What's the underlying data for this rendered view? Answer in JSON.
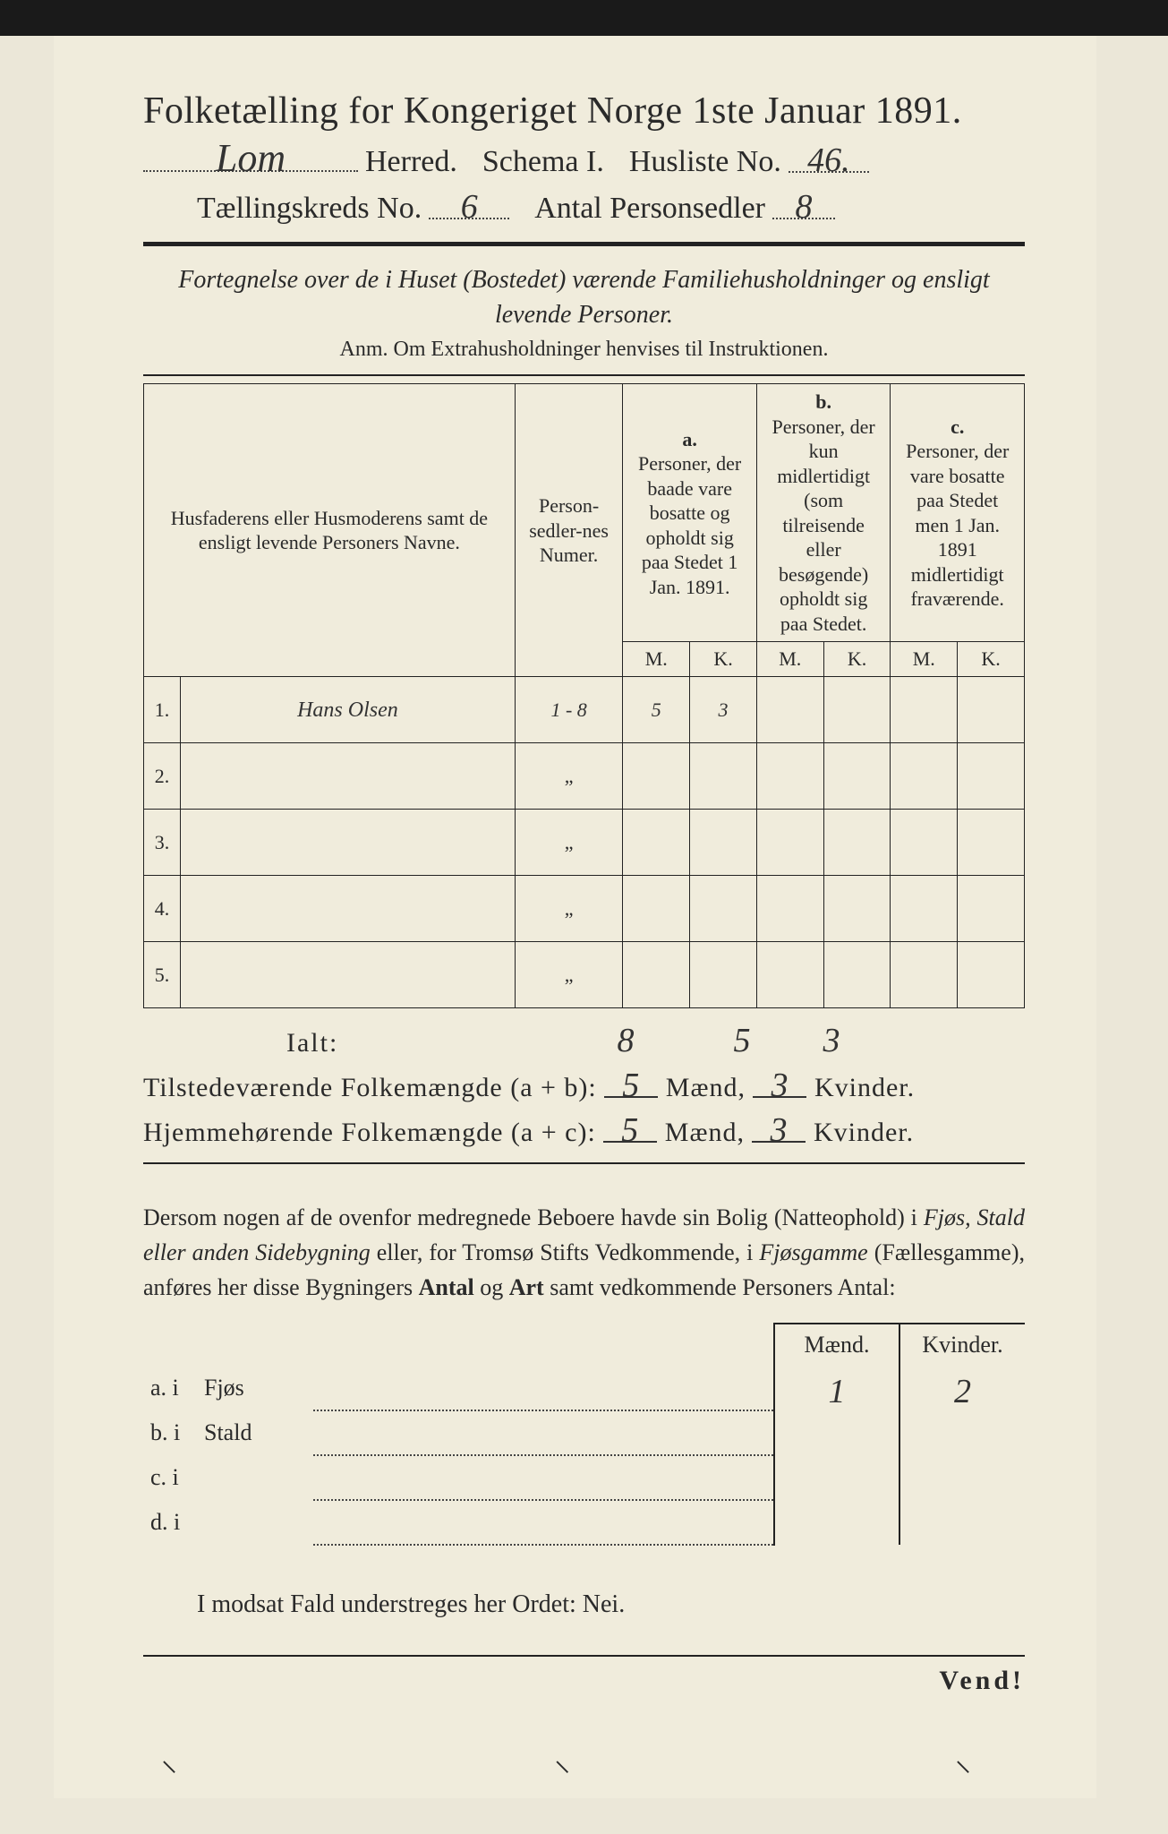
{
  "title": "Folketælling for Kongeriget Norge 1ste Januar 1891.",
  "header": {
    "herred_value": "Lom",
    "herred_label": "Herred.",
    "schema_label": "Schema I.",
    "husliste_label": "Husliste No.",
    "husliste_no": "46.",
    "kreds_label": "Tællingskreds No.",
    "kreds_no": "6",
    "antal_label": "Antal Personsedler",
    "antal_no": "8"
  },
  "instruction": "Fortegnelse over de i Huset (Bostedet) værende Familiehusholdninger og ensligt levende Personer.",
  "anm": "Anm. Om Extrahusholdninger henvises til Instruktionen.",
  "columns": {
    "name": "Husfaderens eller Husmoderens samt de ensligt levende Personers Navne.",
    "numer": "Person-sedler-nes Numer.",
    "a_label": "a.",
    "a_text": "Personer, der baade vare bosatte og opholdt sig paa Stedet 1 Jan. 1891.",
    "b_label": "b.",
    "b_text": "Personer, der kun midlertidigt (som tilreisende eller besøgende) opholdt sig paa Stedet.",
    "c_label": "c.",
    "c_text": "Personer, der vare bosatte paa Stedet men 1 Jan. 1891 midlertidigt fraværende.",
    "m": "M.",
    "k": "K."
  },
  "rows": [
    {
      "n": "1.",
      "name": "Hans Olsen",
      "numer": "1 - 8",
      "am": "5",
      "ak": "3",
      "bm": "",
      "bk": "",
      "cm": "",
      "ck": ""
    },
    {
      "n": "2.",
      "name": "",
      "numer": "„",
      "am": "",
      "ak": "",
      "bm": "",
      "bk": "",
      "cm": "",
      "ck": ""
    },
    {
      "n": "3.",
      "name": "",
      "numer": "„",
      "am": "",
      "ak": "",
      "bm": "",
      "bk": "",
      "cm": "",
      "ck": ""
    },
    {
      "n": "4.",
      "name": "",
      "numer": "„",
      "am": "",
      "ak": "",
      "bm": "",
      "bk": "",
      "cm": "",
      "ck": ""
    },
    {
      "n": "5.",
      "name": "",
      "numer": "„",
      "am": "",
      "ak": "",
      "bm": "",
      "bk": "",
      "cm": "",
      "ck": ""
    }
  ],
  "totals": {
    "label": "Ialt:",
    "numer": "8",
    "am": "5",
    "ak": "3"
  },
  "summary": {
    "line1_label": "Tilstedeværende Folkemængde (a + b):",
    "line1_m": "5",
    "line1_k": "3",
    "line2_label": "Hjemmehørende Folkemængde (a + c):",
    "line2_m": "5",
    "line2_k": "3",
    "maend": "Mænd,",
    "kvinder": "Kvinder."
  },
  "para": {
    "t1": "Dersom nogen af de ovenfor medregnede Beboere havde sin Bolig (Natteophold) i ",
    "it1": "Fjøs, Stald eller anden Sidebygning",
    "t2": " eller, for Tromsø Stifts Vedkommende, i ",
    "it2": "Fjøsgamme",
    "t3": " (Fællesgamme), anføres her disse Bygningers ",
    "b1": "Antal",
    "t4": " og ",
    "b2": "Art",
    "t5": " samt vedkommende Personers Antal:"
  },
  "bldg": {
    "maend": "Mænd.",
    "kvinder": "Kvinder.",
    "rows": [
      {
        "lab": "a. i",
        "typ": "Fjøs",
        "m": "1",
        "k": "2"
      },
      {
        "lab": "b. i",
        "typ": "Stald",
        "m": "",
        "k": ""
      },
      {
        "lab": "c. i",
        "typ": "",
        "m": "",
        "k": ""
      },
      {
        "lab": "d. i",
        "typ": "",
        "m": "",
        "k": ""
      }
    ]
  },
  "nei": "I modsat Fald understreges her Ordet: Nei.",
  "vend": "Vend!",
  "colors": {
    "paper": "#f0ecdc",
    "ink": "#2a2a2a",
    "bg": "#ebe7d8"
  }
}
